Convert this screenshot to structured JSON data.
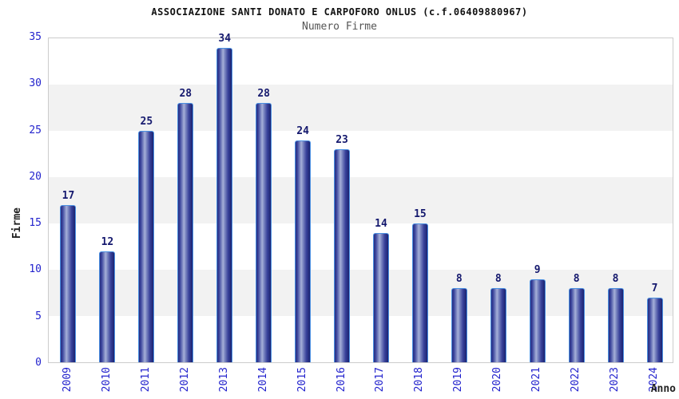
{
  "header": {
    "title": "ASSOCIAZIONE SANTI DONATO E CARPOFORO ONLUS (c.f.06409880967)",
    "subtitle": "Numero Firme"
  },
  "chart_data": {
    "type": "bar",
    "title": "Numero Firme",
    "categories": [
      "2009",
      "2010",
      "2011",
      "2012",
      "2013",
      "2014",
      "2015",
      "2016",
      "2017",
      "2018",
      "2019",
      "2020",
      "2021",
      "2022",
      "2023",
      "2024"
    ],
    "values": [
      17,
      12,
      25,
      28,
      34,
      28,
      24,
      23,
      14,
      15,
      8,
      8,
      9,
      8,
      8,
      7
    ],
    "xlabel": "Anno",
    "ylabel": "Firme",
    "ylim": [
      0,
      35
    ],
    "yticks": [
      0,
      5,
      10,
      15,
      20,
      25,
      30,
      35
    ],
    "grid": "alternating-horizontal-bands",
    "legend_position": "none",
    "data_labels_shown": true
  },
  "colors": {
    "bar_dark": "#1b2370",
    "bar_mid": "#39429b",
    "bar_highlight": "#a6b0d8",
    "bar_border": "#4a90e2",
    "tick_label": "#2323cd",
    "value_label": "#15196e",
    "band_gray": "#f2f2f2",
    "band_white": "#ffffff",
    "plot_border": "#cccccc",
    "title_text": "#111111",
    "subtitle_text": "#555555"
  }
}
